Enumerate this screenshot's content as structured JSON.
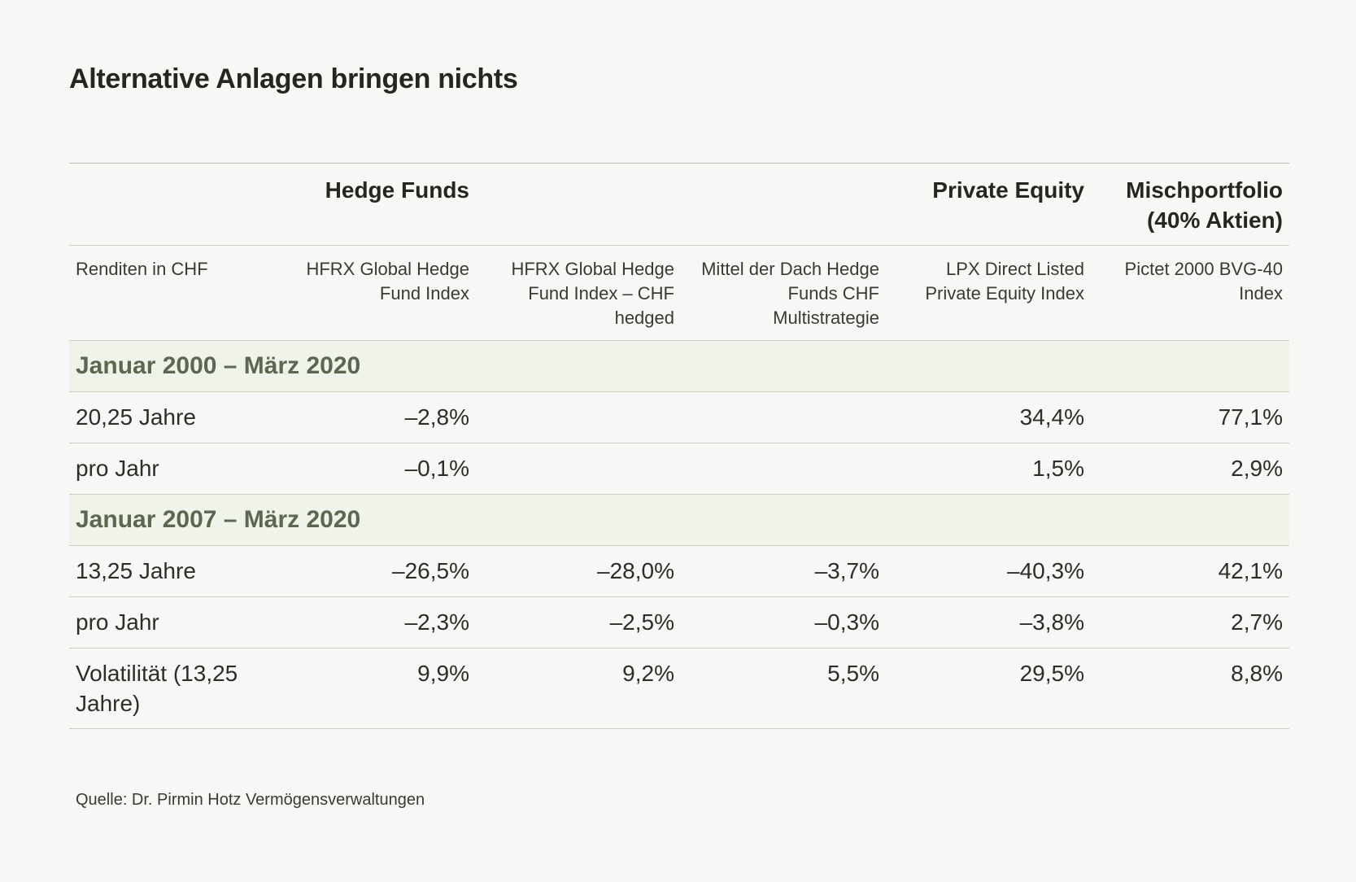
{
  "title": "Alternative Anlagen bringen nichts",
  "chart_data": {
    "type": "table",
    "group_headers": [
      "",
      "Hedge Funds",
      "",
      "",
      "Private Equity",
      "Mischportfolio (40% Aktien)"
    ],
    "columns": [
      "Renditen in CHF",
      "HFRX Global Hedge Fund Index",
      "HFRX Global Hedge Fund Index – CHF hedged",
      "Mittel der Dach Hedge Funds CHF Multistrategie",
      "LPX Direct Listed Private Equity Index",
      "Pictet 2000 BVG-40 Index"
    ],
    "sections": [
      {
        "label": "Januar 2000 – März 2020",
        "rows": [
          [
            "20,25 Jahre",
            "–2,8%",
            "",
            "",
            "34,4%",
            "77,1%"
          ],
          [
            "pro Jahr",
            "–0,1%",
            "",
            "",
            "1,5%",
            "2,9%"
          ]
        ]
      },
      {
        "label": "Januar 2007 – März 2020",
        "rows": [
          [
            "13,25 Jahre",
            "–26,5%",
            "–28,0%",
            "–3,7%",
            "–40,3%",
            "42,1%"
          ],
          [
            "pro Jahr",
            "–2,3%",
            "–2,5%",
            "–0,3%",
            "–3,8%",
            "2,7%"
          ],
          [
            "Volatilität (13,25 Jahre)",
            "9,9%",
            "9,2%",
            "5,5%",
            "29,5%",
            "8,8%"
          ]
        ]
      }
    ]
  },
  "source": "Quelle: Dr. Pirmin Hotz Vermögensverwaltungen",
  "colors": {
    "background": "#f7f7f6",
    "section_background": "#f0f3ea",
    "section_text": "#5d6650",
    "rule": "#c9cfc1"
  }
}
